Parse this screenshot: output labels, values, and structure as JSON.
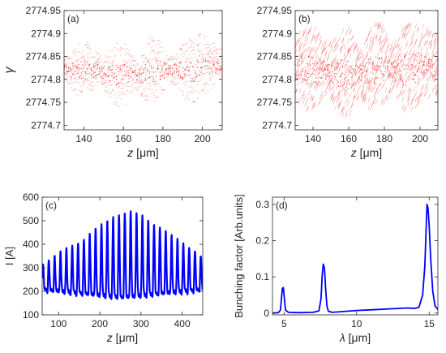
{
  "chart_data": [
    {
      "panel_label": "(a)",
      "type": "scatter",
      "xlabel_var": "z",
      "xlabel_unit": "[μm]",
      "ylabel": "γ",
      "xlim": [
        130,
        210
      ],
      "ylim": [
        2774.69,
        2774.95
      ],
      "xticks": [
        140,
        160,
        180,
        200
      ],
      "yticks": [
        2774.7,
        2774.75,
        2774.8,
        2774.85,
        2774.9,
        2774.95
      ],
      "ytick_labels": [
        "2774.7",
        "2774.75",
        "2774.8",
        "2774.85",
        "2774.9",
        "2774.95"
      ],
      "color": "#ff0000",
      "series": [
        {
          "x": [
            130,
            133,
            136,
            139,
            142,
            145,
            148,
            151,
            154,
            157,
            160,
            163,
            166,
            169,
            172,
            175,
            178,
            181,
            184,
            187,
            190,
            193,
            196,
            199,
            202,
            205,
            208,
            210
          ],
          "center": [
            2774.82,
            2774.82,
            2774.82,
            2774.82,
            2774.82,
            2774.82,
            2774.82,
            2774.81,
            2774.81,
            2774.81,
            2774.81,
            2774.81,
            2774.81,
            2774.81,
            2774.82,
            2774.82,
            2774.82,
            2774.82,
            2774.82,
            2774.82,
            2774.82,
            2774.82,
            2774.82,
            2774.83,
            2774.83,
            2774.83,
            2774.83,
            2774.83
          ],
          "half_width": [
            0.03,
            0.04,
            0.055,
            0.065,
            0.06,
            0.045,
            0.03,
            0.045,
            0.06,
            0.075,
            0.07,
            0.05,
            0.03,
            0.05,
            0.07,
            0.075,
            0.065,
            0.045,
            0.03,
            0.045,
            0.06,
            0.075,
            0.075,
            0.07,
            0.06,
            0.05,
            0.04,
            0.035
          ]
        }
      ]
    },
    {
      "panel_label": "(b)",
      "type": "scatter",
      "xlabel_var": "z",
      "xlabel_unit": "[μm]",
      "ylabel": "",
      "xlim": [
        130,
        210
      ],
      "ylim": [
        2774.69,
        2774.95
      ],
      "xticks": [
        140,
        160,
        180,
        200
      ],
      "yticks": [
        2774.7,
        2774.75,
        2774.8,
        2774.85,
        2774.9,
        2774.95
      ],
      "ytick_labels": [
        "2774.7",
        "2774.75",
        "2774.8",
        "2774.85",
        "2774.9",
        "2774.95"
      ],
      "color": "#ff0000",
      "series": [
        {
          "x": [
            130,
            133,
            136,
            139,
            142,
            145,
            148,
            151,
            154,
            157,
            160,
            163,
            166,
            169,
            172,
            175,
            178,
            181,
            184,
            187,
            190,
            193,
            196,
            199,
            202,
            205,
            208,
            210
          ],
          "center": [
            2774.82,
            2774.82,
            2774.82,
            2774.82,
            2774.82,
            2774.82,
            2774.82,
            2774.81,
            2774.81,
            2774.81,
            2774.81,
            2774.81,
            2774.81,
            2774.81,
            2774.82,
            2774.82,
            2774.82,
            2774.82,
            2774.82,
            2774.82,
            2774.82,
            2774.82,
            2774.82,
            2774.83,
            2774.83,
            2774.83,
            2774.83,
            2774.83
          ],
          "half_width": [
            0.07,
            0.08,
            0.09,
            0.09,
            0.085,
            0.07,
            0.05,
            0.07,
            0.09,
            0.1,
            0.095,
            0.07,
            0.05,
            0.07,
            0.09,
            0.1,
            0.095,
            0.075,
            0.05,
            0.07,
            0.09,
            0.1,
            0.095,
            0.085,
            0.08,
            0.075,
            0.07,
            0.065
          ]
        }
      ]
    },
    {
      "panel_label": "(c)",
      "type": "line",
      "xlabel_var": "z",
      "xlabel_unit": "[μm]",
      "ylabel": "I [A]",
      "xlim": [
        60,
        450
      ],
      "ylim": [
        100,
        600
      ],
      "xticks": [
        100,
        200,
        300,
        400
      ],
      "yticks": [
        100,
        200,
        300,
        400,
        500,
        600
      ],
      "ytick_labels": [
        "100",
        "200",
        "300",
        "400",
        "500",
        "600"
      ],
      "color": "#0000ff",
      "peaks": {
        "first_z": 62,
        "spacing": 14.2,
        "count": 28,
        "amplitudes": [
          320,
          335,
          350,
          365,
          380,
          395,
          410,
          425,
          445,
          465,
          480,
          500,
          520,
          530,
          537,
          537,
          530,
          520,
          505,
          490,
          475,
          455,
          435,
          420,
          405,
          390,
          375,
          350
        ],
        "baseline_edges": 210,
        "baseline_center": 175
      }
    },
    {
      "panel_label": "(d)",
      "type": "line",
      "xlabel_var": "λ",
      "xlabel_unit": "[μm]",
      "ylabel": "Bunching factor [Arb.units]",
      "xlim": [
        4.2,
        15.6
      ],
      "ylim": [
        -0.005,
        0.32
      ],
      "xticks": [
        5,
        10,
        15
      ],
      "yticks": [
        0,
        0.1,
        0.2,
        0.3
      ],
      "ytick_labels": [
        "0",
        "0.1",
        "0.2",
        "0.3"
      ],
      "color": "#0000ff",
      "x": [
        4.2,
        4.6,
        4.75,
        4.82,
        4.88,
        4.95,
        5.02,
        5.1,
        5.3,
        6.0,
        7.0,
        7.4,
        7.55,
        7.62,
        7.7,
        7.78,
        7.86,
        7.95,
        8.05,
        8.3,
        9.0,
        10.0,
        11.0,
        12.0,
        13.0,
        13.5,
        14.0,
        14.3,
        14.55,
        14.7,
        14.78,
        14.85,
        14.92,
        15.0,
        15.1,
        15.25,
        15.4,
        15.6
      ],
      "y": [
        0.0,
        0.001,
        0.008,
        0.04,
        0.068,
        0.07,
        0.04,
        0.008,
        0.002,
        0.001,
        0.002,
        0.006,
        0.04,
        0.1,
        0.135,
        0.125,
        0.07,
        0.02,
        0.005,
        0.002,
        0.004,
        0.007,
        0.009,
        0.011,
        0.013,
        0.014,
        0.013,
        0.016,
        0.05,
        0.13,
        0.22,
        0.3,
        0.29,
        0.24,
        0.15,
        0.06,
        0.02,
        0.01
      ]
    }
  ]
}
